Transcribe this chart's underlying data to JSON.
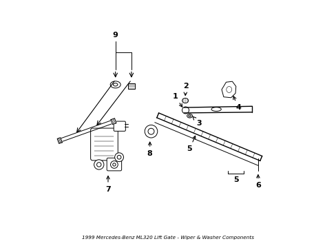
{
  "title": "1999 Mercedes-Benz ML320 Lift Gate - Wiper & Washer Components",
  "bg_color": "#ffffff",
  "line_color": "#000000",
  "fig_width": 4.89,
  "fig_height": 3.6,
  "dpi": 100
}
